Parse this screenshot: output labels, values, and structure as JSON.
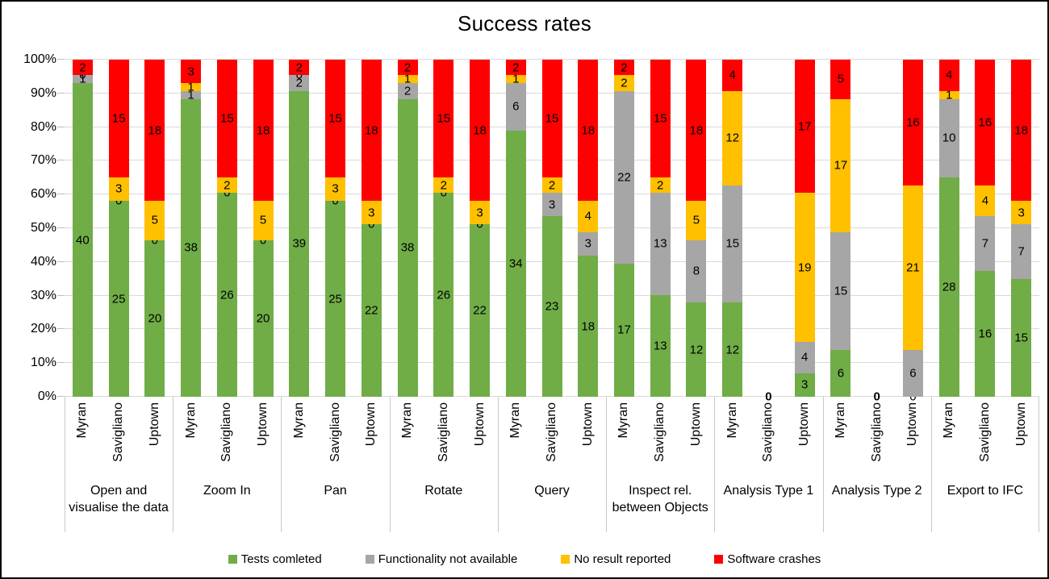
{
  "chart_data": {
    "type": "bar",
    "variant": "100%-stacked",
    "title": "Success rates",
    "legend_position": "bottom",
    "grid": true,
    "y_axis": {
      "min": 0,
      "max": 100,
      "ticks": [
        "0%",
        "10%",
        "20%",
        "30%",
        "40%",
        "50%",
        "60%",
        "70%",
        "80%",
        "90%",
        "100%"
      ]
    },
    "series": [
      {
        "name": "Tests comleted",
        "color": "#70AD47"
      },
      {
        "name": "Functionality not available",
        "color": "#A6A6A6"
      },
      {
        "name": "No result reported",
        "color": "#FFC000"
      },
      {
        "name": "Software crashes",
        "color": "#FF0000"
      }
    ],
    "bar_labels": [
      "Myran",
      "Savigliano",
      "Uptown"
    ],
    "zero_bar_label": "0",
    "groups": [
      {
        "label": "Open and visualise the data",
        "bars": [
          [
            40,
            1,
            0,
            2
          ],
          [
            25,
            0,
            3,
            15
          ],
          [
            20,
            0,
            5,
            18
          ]
        ]
      },
      {
        "label": "Zoom In",
        "bars": [
          [
            38,
            1,
            1,
            3
          ],
          [
            26,
            0,
            2,
            15
          ],
          [
            20,
            0,
            5,
            18
          ]
        ]
      },
      {
        "label": "Pan",
        "bars": [
          [
            39,
            2,
            0,
            2
          ],
          [
            25,
            0,
            3,
            15
          ],
          [
            22,
            0,
            3,
            18
          ]
        ]
      },
      {
        "label": "Rotate",
        "bars": [
          [
            38,
            2,
            1,
            2
          ],
          [
            26,
            0,
            2,
            15
          ],
          [
            22,
            0,
            3,
            18
          ]
        ]
      },
      {
        "label": "Query",
        "bars": [
          [
            34,
            6,
            1,
            2
          ],
          [
            23,
            3,
            2,
            15
          ],
          [
            18,
            3,
            4,
            18
          ]
        ]
      },
      {
        "label": "Inspect rel. between Objects",
        "bars": [
          [
            17,
            22,
            2,
            2
          ],
          [
            13,
            13,
            2,
            15
          ],
          [
            12,
            8,
            5,
            18
          ]
        ]
      },
      {
        "label": "Analysis Type 1",
        "bars": [
          [
            12,
            15,
            12,
            4
          ],
          [
            0,
            0,
            0,
            0
          ],
          [
            3,
            4,
            19,
            17
          ]
        ]
      },
      {
        "label": "Analysis Type 2",
        "bars": [
          [
            6,
            15,
            17,
            5
          ],
          [
            0,
            0,
            0,
            0
          ],
          [
            0,
            6,
            21,
            16
          ]
        ]
      },
      {
        "label": "Export to IFC",
        "bars": [
          [
            28,
            10,
            1,
            4
          ],
          [
            16,
            7,
            4,
            16
          ],
          [
            15,
            7,
            3,
            18
          ]
        ]
      }
    ]
  }
}
